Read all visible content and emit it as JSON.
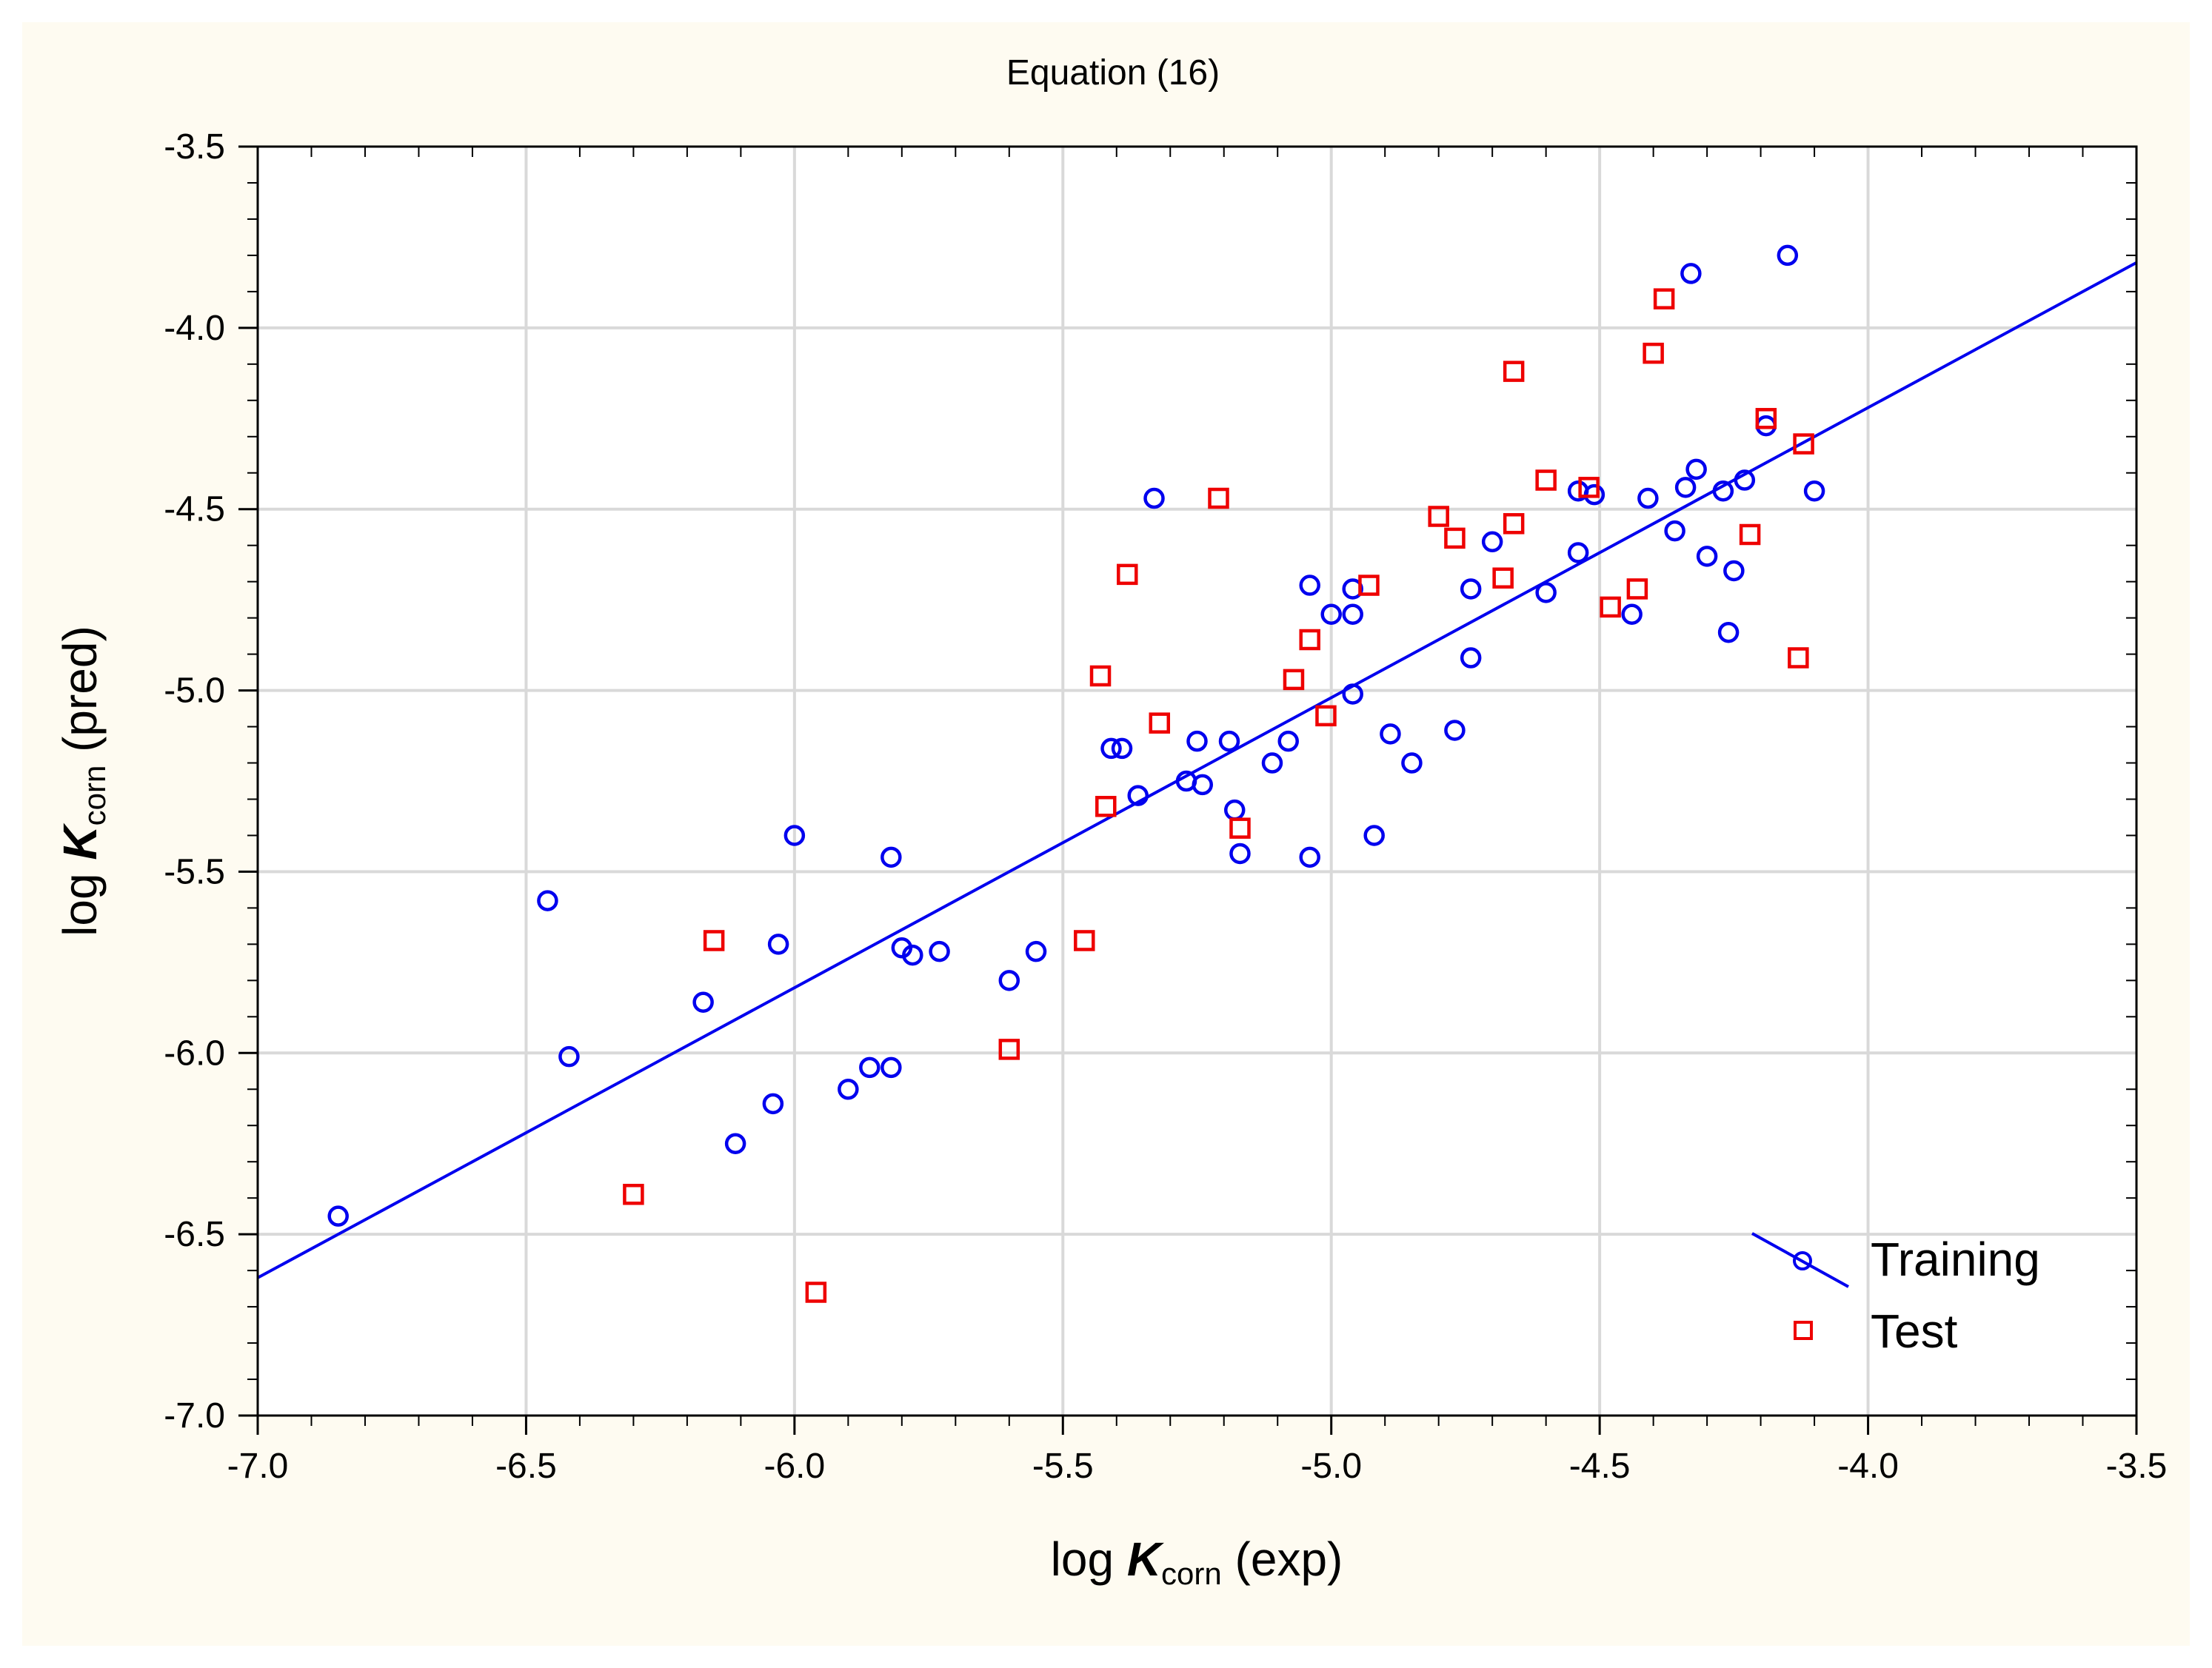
{
  "chart_data": {
    "type": "scatter",
    "title": "Equation (16)",
    "xlabel": {
      "prefix": "log ",
      "symbol": "K",
      "subscript": "corn",
      "suffix": " (exp)"
    },
    "ylabel": {
      "prefix": "log ",
      "symbol": "K",
      "subscript": "corn",
      "suffix": " (pred)"
    },
    "xlim": [
      -7.0,
      -3.5
    ],
    "ylim": [
      -7.0,
      -3.5
    ],
    "xticks": [
      -7.0,
      -6.5,
      -6.0,
      -5.5,
      -5.0,
      -4.5,
      -4.0,
      -3.5
    ],
    "yticks": [
      -7.0,
      -6.5,
      -6.0,
      -5.5,
      -5.0,
      -4.5,
      -4.0,
      -3.5
    ],
    "xtick_labels": [
      "-7.0",
      "-6.5",
      "-6.0",
      "-5.5",
      "-5.0",
      "-4.5",
      "-4.0",
      "-3.5"
    ],
    "ytick_labels": [
      "-7.0",
      "-6.5",
      "-6.0",
      "-5.5",
      "-5.0",
      "-4.5",
      "-4.0",
      "-3.5"
    ],
    "grid": true,
    "legend_position": "bottom-right",
    "colors": {
      "training": "#0000ee",
      "test": "#ee0000",
      "grid": "#d9d9d9",
      "background": "#fefbf1"
    },
    "series": [
      {
        "name": "Training",
        "marker": "circle",
        "points": [
          [
            -6.85,
            -6.45
          ],
          [
            -6.46,
            -5.58
          ],
          [
            -6.42,
            -6.01
          ],
          [
            -6.17,
            -5.86
          ],
          [
            -6.11,
            -6.25
          ],
          [
            -6.04,
            -6.14
          ],
          [
            -6.03,
            -5.7
          ],
          [
            -6.0,
            -5.4
          ],
          [
            -5.9,
            -6.1
          ],
          [
            -5.86,
            -6.04
          ],
          [
            -5.82,
            -6.04
          ],
          [
            -5.82,
            -5.46
          ],
          [
            -5.8,
            -5.71
          ],
          [
            -5.78,
            -5.73
          ],
          [
            -5.73,
            -5.72
          ],
          [
            -5.6,
            -5.8
          ],
          [
            -5.55,
            -5.72
          ],
          [
            -5.41,
            -5.16
          ],
          [
            -5.39,
            -5.16
          ],
          [
            -5.36,
            -5.29
          ],
          [
            -5.33,
            -4.47
          ],
          [
            -5.27,
            -5.25
          ],
          [
            -5.25,
            -5.14
          ],
          [
            -5.24,
            -5.26
          ],
          [
            -5.19,
            -5.14
          ],
          [
            -5.18,
            -5.33
          ],
          [
            -5.17,
            -5.45
          ],
          [
            -5.11,
            -5.2
          ],
          [
            -5.08,
            -5.14
          ],
          [
            -5.04,
            -5.46
          ],
          [
            -5.04,
            -4.71
          ],
          [
            -5.0,
            -4.79
          ],
          [
            -4.96,
            -4.79
          ],
          [
            -4.96,
            -4.72
          ],
          [
            -4.96,
            -5.01
          ],
          [
            -4.92,
            -5.4
          ],
          [
            -4.89,
            -5.12
          ],
          [
            -4.85,
            -5.2
          ],
          [
            -4.77,
            -5.11
          ],
          [
            -4.74,
            -4.91
          ],
          [
            -4.74,
            -4.72
          ],
          [
            -4.7,
            -4.59
          ],
          [
            -4.6,
            -4.73
          ],
          [
            -4.54,
            -4.62
          ],
          [
            -4.54,
            -4.45
          ],
          [
            -4.51,
            -4.46
          ],
          [
            -4.44,
            -4.79
          ],
          [
            -4.41,
            -4.47
          ],
          [
            -4.36,
            -4.56
          ],
          [
            -4.34,
            -4.44
          ],
          [
            -4.33,
            -3.85
          ],
          [
            -4.32,
            -4.39
          ],
          [
            -4.3,
            -4.63
          ],
          [
            -4.27,
            -4.45
          ],
          [
            -4.26,
            -4.84
          ],
          [
            -4.25,
            -4.67
          ],
          [
            -4.23,
            -4.42
          ],
          [
            -4.19,
            -4.27
          ],
          [
            -4.15,
            -3.8
          ],
          [
            -4.1,
            -4.45
          ]
        ]
      },
      {
        "name": "Test",
        "marker": "square",
        "points": [
          [
            -6.3,
            -6.39
          ],
          [
            -6.15,
            -5.69
          ],
          [
            -5.96,
            -6.66
          ],
          [
            -5.6,
            -5.99
          ],
          [
            -5.46,
            -5.69
          ],
          [
            -5.43,
            -4.96
          ],
          [
            -5.42,
            -5.32
          ],
          [
            -5.38,
            -4.68
          ],
          [
            -5.32,
            -5.09
          ],
          [
            -5.21,
            -4.47
          ],
          [
            -5.17,
            -5.38
          ],
          [
            -5.07,
            -4.97
          ],
          [
            -5.04,
            -4.86
          ],
          [
            -5.01,
            -5.07
          ],
          [
            -4.93,
            -4.71
          ],
          [
            -4.8,
            -4.52
          ],
          [
            -4.77,
            -4.58
          ],
          [
            -4.68,
            -4.69
          ],
          [
            -4.66,
            -4.12
          ],
          [
            -4.66,
            -4.54
          ],
          [
            -4.6,
            -4.42
          ],
          [
            -4.52,
            -4.44
          ],
          [
            -4.48,
            -4.77
          ],
          [
            -4.43,
            -4.72
          ],
          [
            -4.4,
            -4.07
          ],
          [
            -4.38,
            -3.92
          ],
          [
            -4.22,
            -4.57
          ],
          [
            -4.19,
            -4.25
          ],
          [
            -4.13,
            -4.91
          ],
          [
            -4.12,
            -4.32
          ]
        ]
      }
    ],
    "fit_line": {
      "series": "Training",
      "x": [
        -7.0,
        -3.5
      ],
      "y": [
        -6.62,
        -3.82
      ]
    }
  }
}
